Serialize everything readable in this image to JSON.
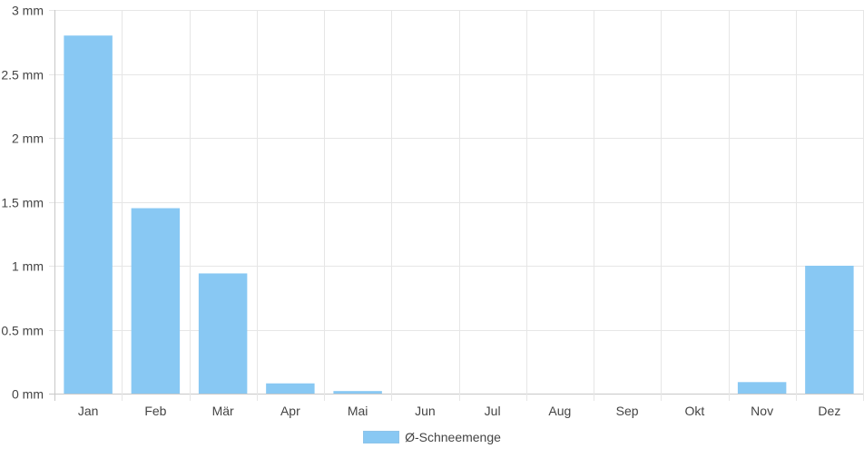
{
  "chart_data": {
    "type": "bar",
    "categories": [
      "Jan",
      "Feb",
      "Mär",
      "Apr",
      "Mai",
      "Jun",
      "Jul",
      "Aug",
      "Sep",
      "Okt",
      "Nov",
      "Dez"
    ],
    "series": [
      {
        "name": "Ø-Schneemenge",
        "values": [
          2.8,
          1.45,
          0.94,
          0.08,
          0.02,
          0,
          0,
          0,
          0,
          0,
          0.09,
          1.0
        ]
      }
    ],
    "ylim": [
      0,
      3
    ],
    "yticks": [
      0,
      0.5,
      1,
      1.5,
      2,
      2.5,
      3
    ],
    "ytick_labels": [
      "0 mm",
      "0.5 mm",
      "1 mm",
      "1.5 mm",
      "2 mm",
      "2.5 mm",
      "3 mm"
    ],
    "grid": true,
    "legend_position": "bottom-center",
    "bar_color": "#88c8f3"
  }
}
